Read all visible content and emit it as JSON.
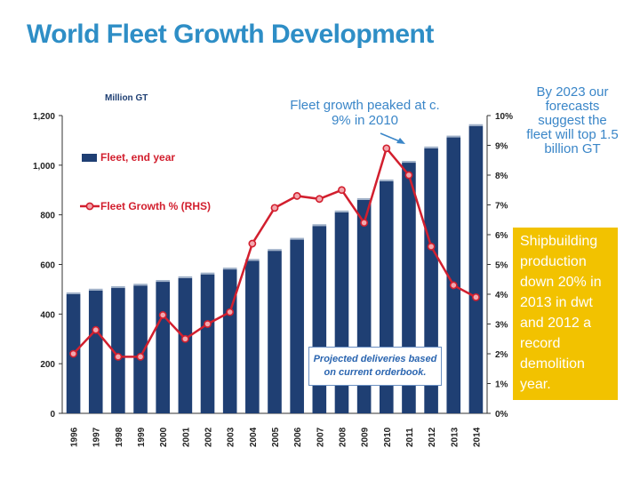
{
  "page": {
    "title": "World Fleet Growth Development"
  },
  "annotations": {
    "y_unit": "Million GT",
    "peak": "Fleet growth peaked at c. 9% in 2010",
    "forecast": "By 2023 our forecasts suggest the fleet will top 1.5 billion GT",
    "side_box": "Shipbuilding production down 20% in 2013 in dwt and 2012 a record demolition year.",
    "projected": "Projected deliveries based on current orderbook."
  },
  "colors": {
    "bar": "#1f3f73",
    "bar_projected": "#1f3f73",
    "line": "#d21f2e",
    "title": "#2e8ec6",
    "box": "#f2c200"
  },
  "chart_data": {
    "type": "bar",
    "categories": [
      "1996",
      "1997",
      "1998",
      "1999",
      "2000",
      "2001",
      "2002",
      "2003",
      "2004",
      "2005",
      "2006",
      "2007",
      "2008",
      "2009",
      "2010",
      "2011",
      "2012",
      "2013",
      "2014"
    ],
    "series": [
      {
        "name": "Fleet, end year",
        "axis": "left",
        "kind": "bar",
        "values": [
          480,
          495,
          505,
          515,
          530,
          545,
          560,
          580,
          615,
          655,
          700,
          755,
          810,
          860,
          935,
          1010,
          1068,
          1112,
          1158
        ]
      },
      {
        "name": "Fleet Growth % (RHS)",
        "axis": "right",
        "kind": "line",
        "values": [
          2.0,
          2.8,
          1.9,
          1.9,
          3.3,
          2.5,
          3.0,
          3.4,
          5.7,
          6.9,
          7.3,
          7.2,
          7.5,
          6.4,
          8.9,
          8.0,
          5.6,
          4.3,
          3.9
        ]
      }
    ],
    "y_left": {
      "ticks": [
        0,
        200,
        400,
        600,
        800,
        1000,
        1200
      ],
      "tick_labels": [
        "0",
        "200",
        "400",
        "600",
        "800",
        "1,000",
        "1,200"
      ],
      "ylim": [
        0,
        1200
      ]
    },
    "y_right": {
      "ticks": [
        0,
        1,
        2,
        3,
        4,
        5,
        6,
        7,
        8,
        9,
        10
      ],
      "tick_labels": [
        "0%",
        "1%",
        "2%",
        "3%",
        "4%",
        "5%",
        "6%",
        "7%",
        "8%",
        "9%",
        "10%"
      ],
      "ylim": [
        0,
        10
      ]
    },
    "grid": false,
    "legend": "left"
  }
}
